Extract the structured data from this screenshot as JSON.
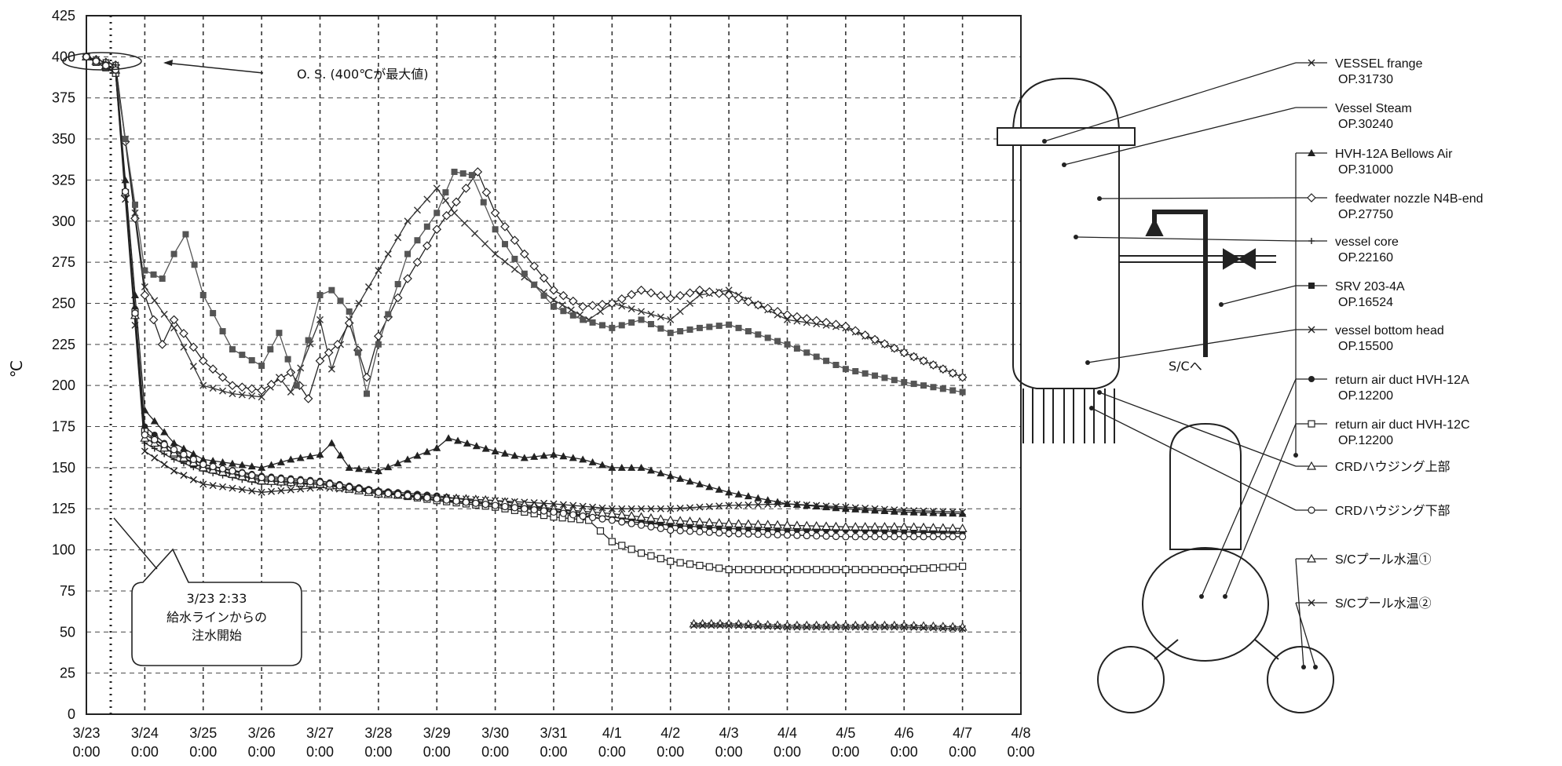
{
  "chart_data": {
    "type": "line",
    "ylabel": "℃",
    "ylim": [
      0,
      425
    ],
    "yticks": [
      0,
      25,
      50,
      75,
      100,
      125,
      150,
      175,
      200,
      225,
      250,
      275,
      300,
      325,
      350,
      375,
      400,
      425
    ],
    "x_unit": "days since 3/23 0:00",
    "xlim": [
      0,
      16
    ],
    "xticks": [
      {
        "date": "3/23",
        "time": "0:00"
      },
      {
        "date": "3/24",
        "time": "0:00"
      },
      {
        "date": "3/25",
        "time": "0:00"
      },
      {
        "date": "3/26",
        "time": "0:00"
      },
      {
        "date": "3/27",
        "time": "0:00"
      },
      {
        "date": "3/28",
        "time": "0:00"
      },
      {
        "date": "3/29",
        "time": "0:00"
      },
      {
        "date": "3/30",
        "time": "0:00"
      },
      {
        "date": "3/31",
        "time": "0:00"
      },
      {
        "date": "4/1",
        "time": "0:00"
      },
      {
        "date": "4/2",
        "time": "0:00"
      },
      {
        "date": "4/3",
        "time": "0:00"
      },
      {
        "date": "4/4",
        "time": "0:00"
      },
      {
        "date": "4/5",
        "time": "0:00"
      },
      {
        "date": "4/6",
        "time": "0:00"
      },
      {
        "date": "4/7",
        "time": "0:00"
      },
      {
        "date": "4/8",
        "time": "0:00"
      }
    ],
    "grid": true,
    "legend_position": "right",
    "annotations": [
      {
        "text": "O. S. (400℃が最大値)"
      },
      {
        "lines": [
          "3/23 2:33",
          "給水ラインからの",
          "注水開始"
        ]
      }
    ],
    "series": [
      {
        "name": "VESSEL frange",
        "op": "OP.31730",
        "marker": "x-line",
        "color": "#333333",
        "values": [
          [
            0,
            400
          ],
          [
            0.5,
            395
          ],
          [
            1.0,
            260
          ],
          [
            1.5,
            235
          ],
          [
            2.0,
            200
          ],
          [
            2.5,
            195
          ],
          [
            3.0,
            193
          ],
          [
            3.3,
            205
          ],
          [
            3.5,
            196
          ],
          [
            4.0,
            240
          ],
          [
            4.2,
            210
          ],
          [
            4.5,
            240
          ],
          [
            5.0,
            270
          ],
          [
            5.5,
            300
          ],
          [
            6.0,
            320
          ],
          [
            6.3,
            305
          ],
          [
            7.0,
            280
          ],
          [
            8.0,
            252
          ],
          [
            8.6,
            240
          ],
          [
            9.0,
            250
          ],
          [
            9.5,
            245
          ],
          [
            10.0,
            240
          ],
          [
            10.5,
            255
          ],
          [
            11.0,
            258
          ],
          [
            12.0,
            240
          ],
          [
            13.0,
            235
          ],
          [
            14.0,
            220
          ],
          [
            15.0,
            205
          ]
        ]
      },
      {
        "name": "Vessel Steam",
        "op": "OP.30240",
        "marker": "none",
        "color": "#444444",
        "values": []
      },
      {
        "name": "HVH-12A Bellows Air",
        "op": "OP.31000",
        "marker": "triangle",
        "color": "#222222",
        "values": [
          [
            0,
            400
          ],
          [
            0.5,
            395
          ],
          [
            1.0,
            185
          ],
          [
            1.5,
            165
          ],
          [
            2.0,
            155
          ],
          [
            3.0,
            150
          ],
          [
            3.5,
            155
          ],
          [
            4.0,
            158
          ],
          [
            4.2,
            165
          ],
          [
            4.5,
            150
          ],
          [
            5.0,
            148
          ],
          [
            5.5,
            155
          ],
          [
            6.0,
            162
          ],
          [
            6.2,
            168
          ],
          [
            7.0,
            160
          ],
          [
            7.5,
            156
          ],
          [
            8.0,
            158
          ],
          [
            8.5,
            155
          ],
          [
            9.0,
            150
          ],
          [
            9.5,
            150
          ],
          [
            10.0,
            145
          ],
          [
            11.0,
            135
          ],
          [
            12.0,
            128
          ],
          [
            13.0,
            125
          ],
          [
            14.0,
            123
          ],
          [
            15.0,
            122
          ]
        ]
      },
      {
        "name": "feedwater nozzle N4B-end",
        "op": "OP.27750",
        "marker": "diamond",
        "color": "#222222",
        "values": [
          [
            0,
            400
          ],
          [
            0.5,
            395
          ],
          [
            1.0,
            255
          ],
          [
            1.3,
            225
          ],
          [
            1.5,
            240
          ],
          [
            2.0,
            215
          ],
          [
            2.5,
            200
          ],
          [
            3.0,
            197
          ],
          [
            3.5,
            208
          ],
          [
            3.8,
            192
          ],
          [
            4.0,
            215
          ],
          [
            4.3,
            225
          ],
          [
            4.5,
            238
          ],
          [
            4.8,
            205
          ],
          [
            5.0,
            230
          ],
          [
            5.5,
            265
          ],
          [
            6.0,
            295
          ],
          [
            6.5,
            320
          ],
          [
            6.7,
            330
          ],
          [
            7.0,
            305
          ],
          [
            7.5,
            280
          ],
          [
            8.0,
            258
          ],
          [
            8.5,
            248
          ],
          [
            9.0,
            250
          ],
          [
            9.5,
            258
          ],
          [
            10.0,
            253
          ],
          [
            10.5,
            258
          ],
          [
            11.0,
            255
          ],
          [
            12.0,
            243
          ],
          [
            13.0,
            236
          ],
          [
            14.0,
            220
          ],
          [
            15.0,
            205
          ]
        ]
      },
      {
        "name": "vessel core",
        "op": "OP.22160",
        "marker": "plus",
        "color": "#222222",
        "values": [
          [
            0,
            400
          ],
          [
            0.5,
            395
          ],
          [
            1.0,
            165
          ],
          [
            1.5,
            155
          ],
          [
            2.0,
            148
          ],
          [
            3.0,
            140
          ],
          [
            4.0,
            140
          ],
          [
            5.0,
            136
          ],
          [
            6.0,
            130
          ],
          [
            7.0,
            128
          ],
          [
            8.0,
            125
          ],
          [
            9.0,
            120
          ],
          [
            10.0,
            115
          ],
          [
            11.0,
            113
          ],
          [
            12.0,
            112
          ],
          [
            13.0,
            112
          ],
          [
            14.0,
            111
          ],
          [
            15.0,
            110
          ]
        ]
      },
      {
        "name": "SRV 203-4A",
        "op": "OP.16524",
        "marker": "square-filled",
        "color": "#555555",
        "values": [
          [
            0,
            400
          ],
          [
            0.5,
            390
          ],
          [
            1.0,
            270
          ],
          [
            1.3,
            265
          ],
          [
            1.5,
            280
          ],
          [
            1.7,
            292
          ],
          [
            2.0,
            255
          ],
          [
            2.5,
            222
          ],
          [
            3.0,
            212
          ],
          [
            3.3,
            232
          ],
          [
            3.6,
            200
          ],
          [
            4.0,
            255
          ],
          [
            4.2,
            258
          ],
          [
            4.5,
            245
          ],
          [
            4.8,
            195
          ],
          [
            5.0,
            225
          ],
          [
            5.5,
            280
          ],
          [
            6.0,
            305
          ],
          [
            6.3,
            330
          ],
          [
            6.6,
            328
          ],
          [
            7.0,
            295
          ],
          [
            7.5,
            268
          ],
          [
            8.0,
            248
          ],
          [
            8.5,
            240
          ],
          [
            9.0,
            235
          ],
          [
            9.5,
            240
          ],
          [
            10.0,
            232
          ],
          [
            10.5,
            235
          ],
          [
            11.0,
            237
          ],
          [
            12.0,
            225
          ],
          [
            13.0,
            210
          ],
          [
            14.0,
            202
          ],
          [
            15.0,
            196
          ]
        ]
      },
      {
        "name": "vessel bottom head",
        "op": "OP.15500",
        "marker": "x",
        "color": "#222222",
        "values": [
          [
            0,
            400
          ],
          [
            0.5,
            390
          ],
          [
            1.0,
            160
          ],
          [
            1.5,
            148
          ],
          [
            2.0,
            140
          ],
          [
            3.0,
            135
          ],
          [
            4.0,
            138
          ],
          [
            5.0,
            135
          ],
          [
            6.0,
            132
          ],
          [
            7.0,
            130
          ],
          [
            8.0,
            128
          ],
          [
            9.0,
            125
          ],
          [
            10.0,
            125
          ],
          [
            11.0,
            127
          ],
          [
            12.0,
            128
          ],
          [
            13.0,
            126
          ],
          [
            14.0,
            124
          ],
          [
            15.0,
            123
          ]
        ]
      },
      {
        "name": "return air duct HVH-12A",
        "op": "OP.12200",
        "marker": "circle-filled",
        "color": "#222222",
        "values": [
          [
            0,
            400
          ],
          [
            0.5,
            390
          ],
          [
            1.0,
            175
          ],
          [
            1.5,
            160
          ],
          [
            2.0,
            152
          ],
          [
            3.0,
            145
          ],
          [
            4.0,
            142
          ],
          [
            5.0,
            136
          ],
          [
            6.0,
            133
          ],
          [
            7.0,
            128
          ],
          [
            8.0,
            124
          ],
          [
            9.0,
            118
          ],
          [
            10.0,
            115
          ],
          [
            11.0,
            113
          ],
          [
            12.0,
            112
          ],
          [
            13.0,
            112
          ],
          [
            14.0,
            111
          ],
          [
            15.0,
            111
          ]
        ]
      },
      {
        "name": "return air duct HVH-12C",
        "op": "OP.12200",
        "marker": "square",
        "color": "#222222",
        "values": [
          [
            0,
            400
          ],
          [
            0.5,
            390
          ],
          [
            1.0,
            172
          ],
          [
            1.5,
            158
          ],
          [
            2.0,
            150
          ],
          [
            3.0,
            143
          ],
          [
            4.0,
            140
          ],
          [
            5.0,
            135
          ],
          [
            6.0,
            130
          ],
          [
            7.0,
            126
          ],
          [
            8.0,
            120
          ],
          [
            8.6,
            118
          ],
          [
            9.0,
            105
          ],
          [
            9.5,
            98
          ],
          [
            10.0,
            93
          ],
          [
            11.0,
            88
          ],
          [
            12.0,
            88
          ],
          [
            13.0,
            88
          ],
          [
            14.0,
            88
          ],
          [
            15.0,
            90
          ]
        ]
      },
      {
        "name": "CRDハウジング上部",
        "op": "",
        "marker": "triangle-open",
        "color": "#222222",
        "values": [
          [
            0,
            400
          ],
          [
            0.5,
            392
          ],
          [
            1.0,
            168
          ],
          [
            2.0,
            150
          ],
          [
            3.0,
            142
          ],
          [
            4.0,
            140
          ],
          [
            5.0,
            134
          ],
          [
            6.0,
            132
          ],
          [
            7.0,
            130
          ],
          [
            8.0,
            125
          ],
          [
            9.0,
            122
          ],
          [
            10.0,
            118
          ],
          [
            11.0,
            116
          ],
          [
            12.0,
            115
          ],
          [
            13.0,
            114
          ],
          [
            14.0,
            114
          ],
          [
            15.0,
            113
          ]
        ]
      },
      {
        "name": "CRDハウジング下部",
        "op": "",
        "marker": "circle",
        "color": "#222222",
        "values": [
          [
            0,
            400
          ],
          [
            0.5,
            392
          ],
          [
            1.0,
            170
          ],
          [
            2.0,
            152
          ],
          [
            3.0,
            144
          ],
          [
            4.0,
            141
          ],
          [
            5.0,
            135
          ],
          [
            6.0,
            131
          ],
          [
            7.0,
            127
          ],
          [
            8.0,
            123
          ],
          [
            9.0,
            118
          ],
          [
            10.0,
            112
          ],
          [
            11.0,
            110
          ],
          [
            12.0,
            109
          ],
          [
            13.0,
            108
          ],
          [
            14.0,
            108
          ],
          [
            15.0,
            108
          ]
        ]
      },
      {
        "name": "S/Cプール水温①",
        "op": "",
        "marker": "triangle-open",
        "color": "#333333",
        "values": [
          [
            10.4,
            55
          ],
          [
            11.0,
            55
          ],
          [
            12.0,
            54
          ],
          [
            13.0,
            54
          ],
          [
            14.0,
            54
          ],
          [
            15.0,
            53
          ]
        ]
      },
      {
        "name": "S/Cプール水温②",
        "op": "",
        "marker": "x",
        "color": "#222222",
        "values": [
          [
            10.4,
            54
          ],
          [
            11.0,
            54
          ],
          [
            12.0,
            53
          ],
          [
            13.0,
            53
          ],
          [
            14.0,
            53
          ],
          [
            15.0,
            52
          ]
        ]
      }
    ]
  },
  "diagram": {
    "label_sc": "S/Cへ"
  }
}
